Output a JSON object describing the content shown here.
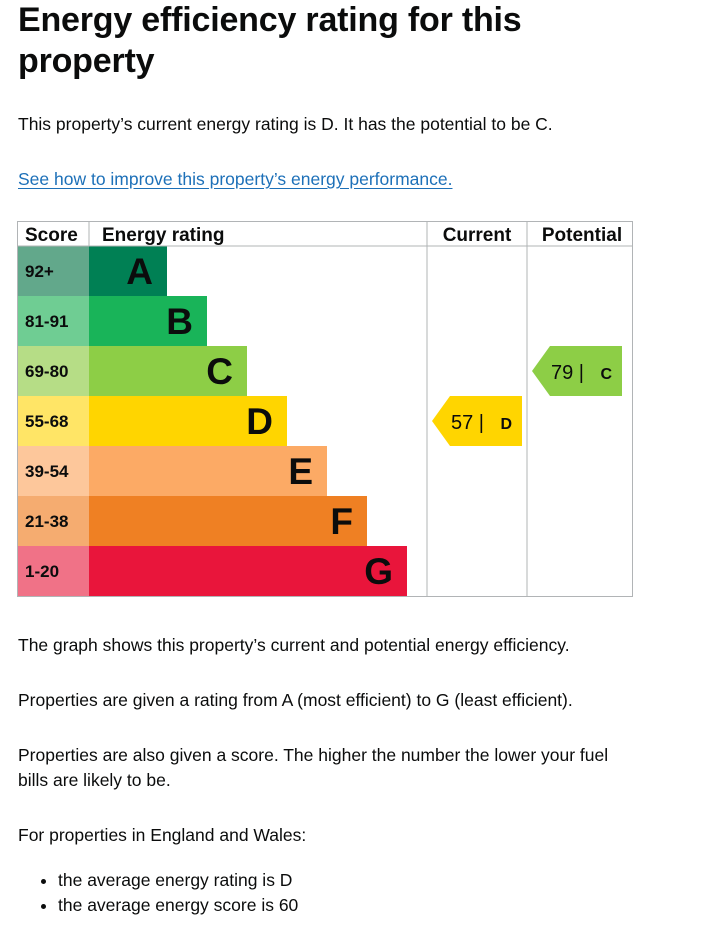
{
  "page": {
    "title": "Energy efficiency rating for this property",
    "summary": "This property’s current energy rating is D. It has the potential to be C.",
    "improve_link": "See how to improve this property’s energy performance.",
    "para1": "The graph shows this property’s current and potential energy efficiency.",
    "para2": "Properties are given a rating from A (most efficient) to G (least efficient).",
    "para3": "Properties are also given a score. The higher the number the lower your fuel bills are likely to be.",
    "para4": "For properties in England and Wales:",
    "bullets": [
      "the average energy rating is D",
      "the average energy score is 60"
    ]
  },
  "chart_data": {
    "type": "bar",
    "headers": {
      "score": "Score",
      "rating": "Energy rating",
      "current": "Current",
      "potential": "Potential"
    },
    "bands": [
      {
        "letter": "A",
        "range": "92+",
        "color": "#008054",
        "score_color": "#62a88b"
      },
      {
        "letter": "B",
        "range": "81-91",
        "color": "#19b459",
        "score_color": "#6fcd93"
      },
      {
        "letter": "C",
        "range": "69-80",
        "color": "#8dce46",
        "score_color": "#b6dd86"
      },
      {
        "letter": "D",
        "range": "55-68",
        "color": "#ffd500",
        "score_color": "#ffe566"
      },
      {
        "letter": "E",
        "range": "39-54",
        "color": "#fcaa65",
        "score_color": "#fdc79b"
      },
      {
        "letter": "F",
        "range": "21-38",
        "color": "#ef8023",
        "score_color": "#f5ac70"
      },
      {
        "letter": "G",
        "range": "1-20",
        "color": "#e9153b",
        "score_color": "#f07287"
      }
    ],
    "current": {
      "score": 57,
      "band": "D",
      "label": "57 |",
      "color": "#ffd500"
    },
    "potential": {
      "score": 79,
      "band": "C",
      "label": "79 |",
      "color": "#8dce46"
    }
  }
}
